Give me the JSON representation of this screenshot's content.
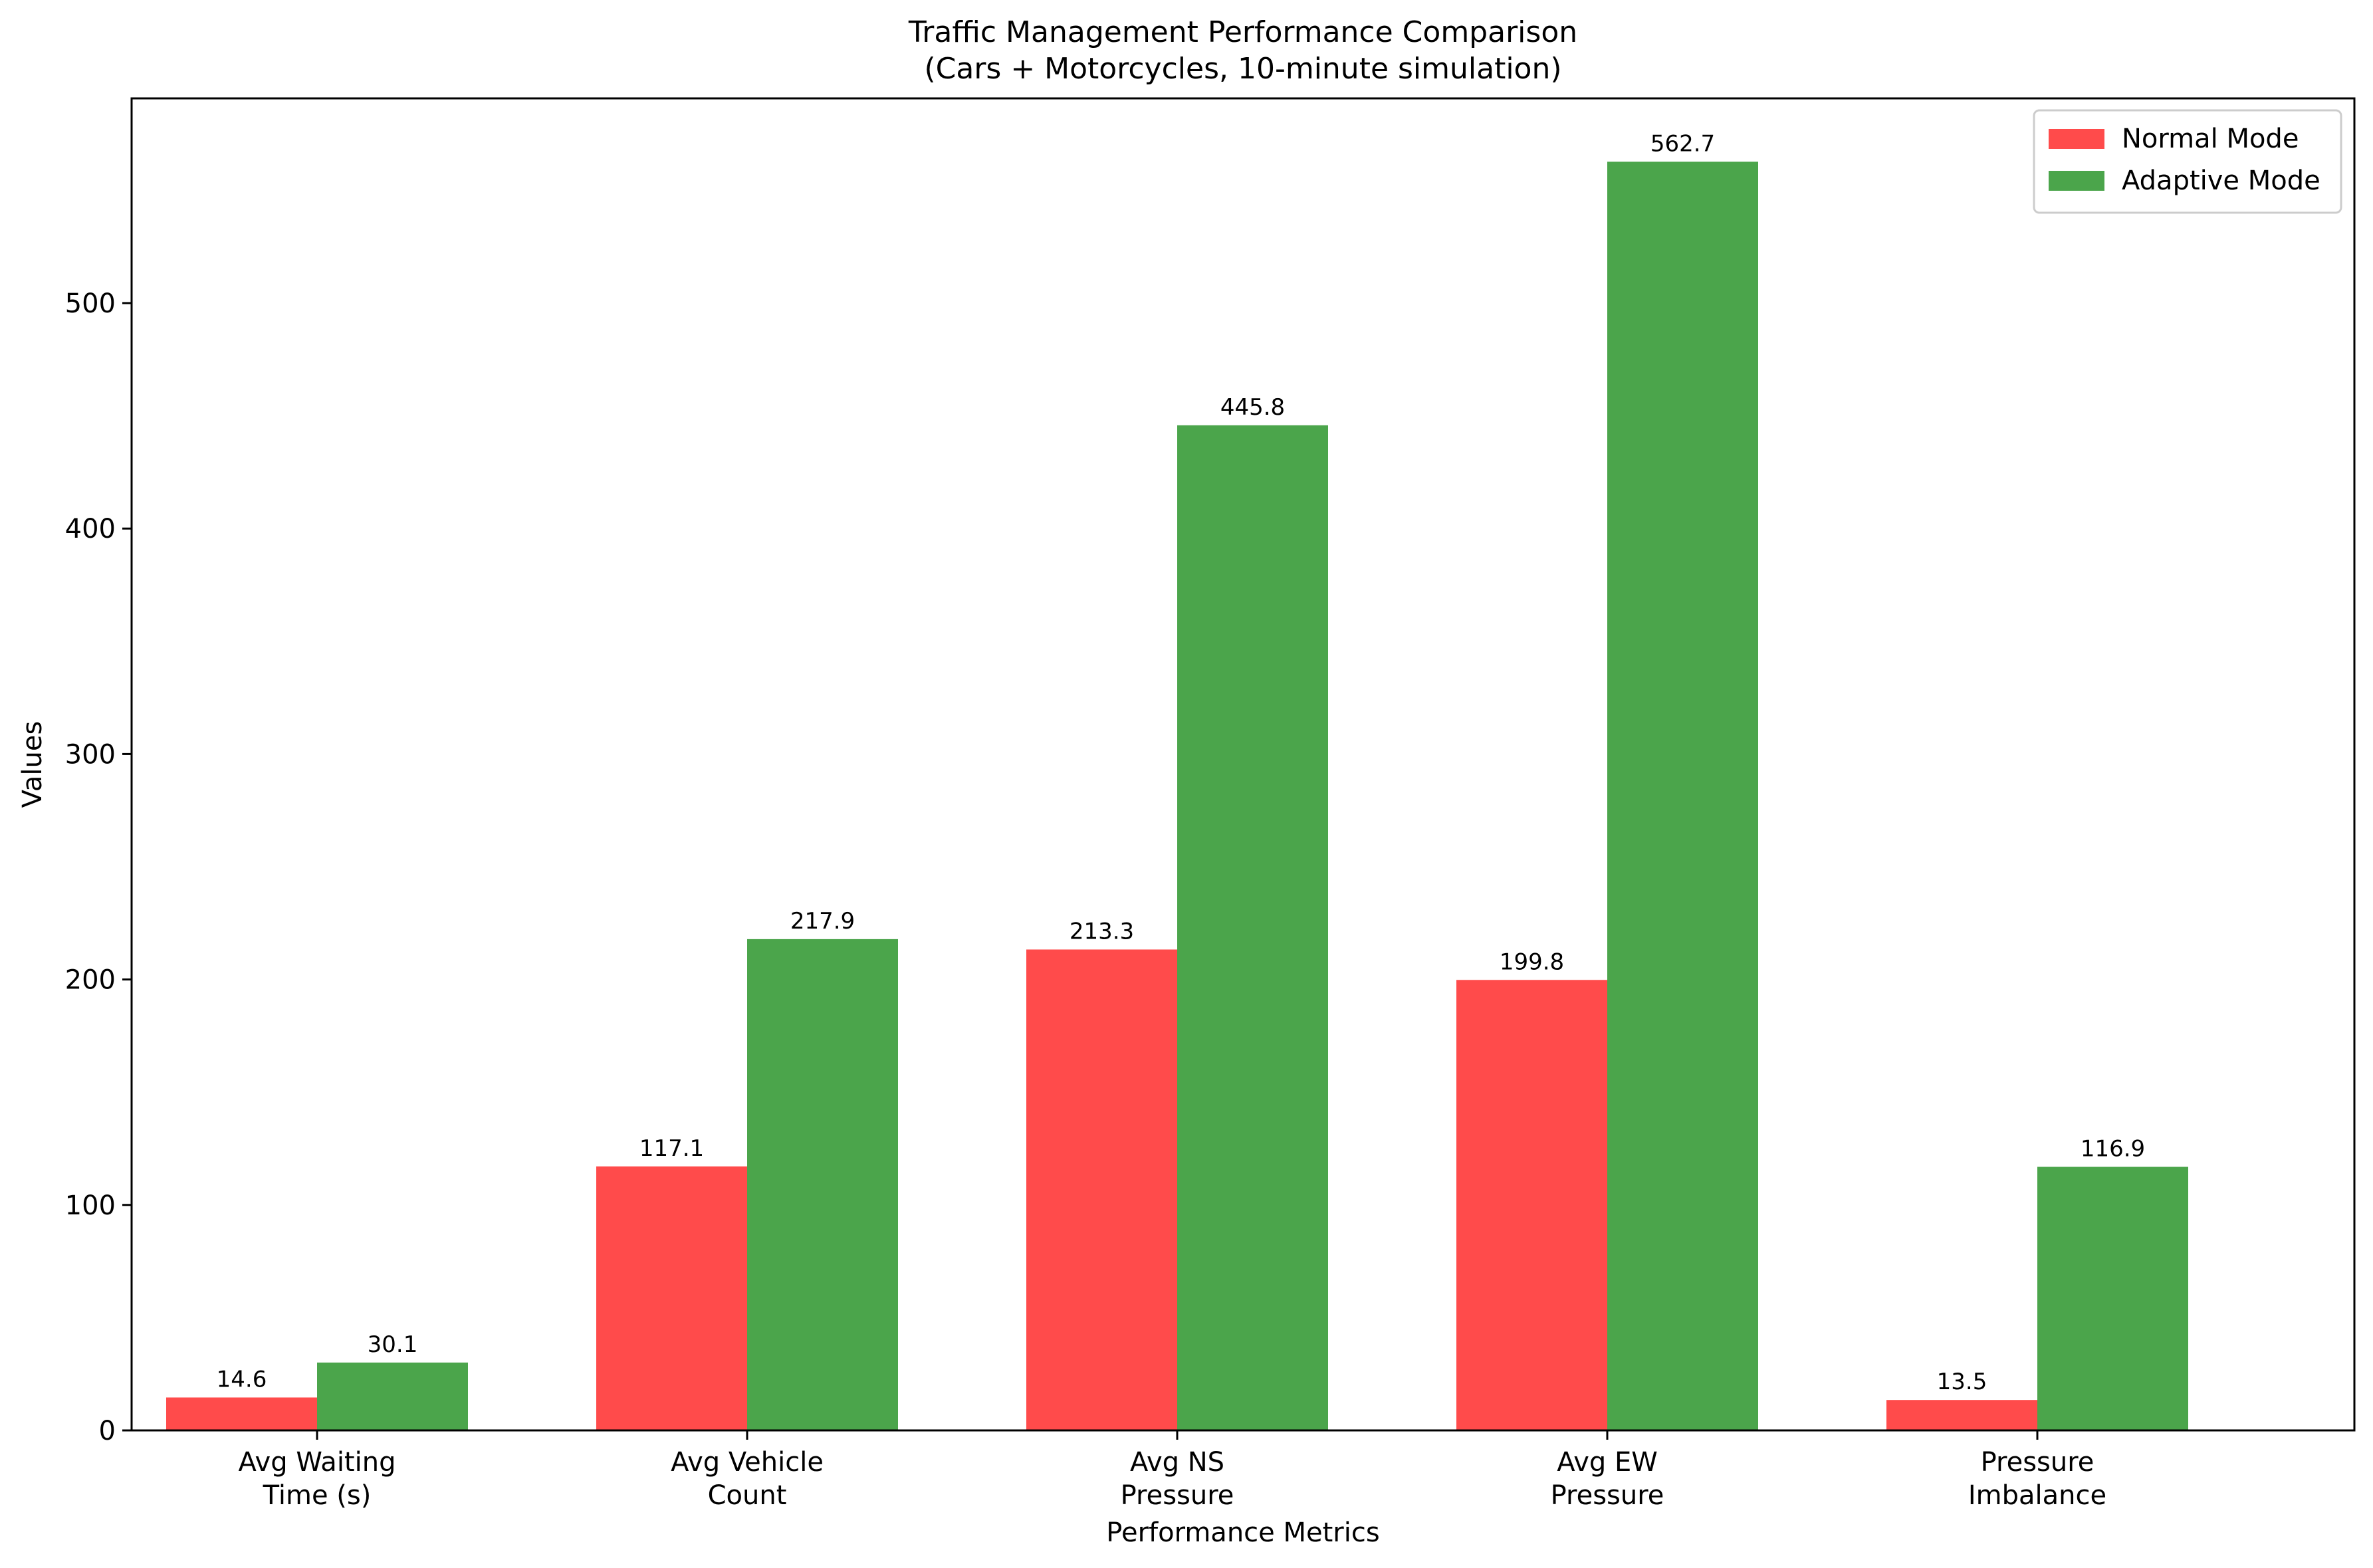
{
  "chart_data": {
    "type": "bar",
    "title": "Traffic Management Performance Comparison",
    "subtitle": "(Cars + Motorcycles, 10-minute simulation)",
    "xlabel": "Performance Metrics",
    "ylabel": "Values",
    "categories": [
      [
        "Avg Waiting",
        "Time (s)"
      ],
      [
        "Avg Vehicle",
        "Count"
      ],
      [
        "Avg NS",
        "Pressure"
      ],
      [
        "Avg EW",
        "Pressure"
      ],
      [
        "Pressure",
        "Imbalance"
      ]
    ],
    "series": [
      {
        "name": "Normal Mode",
        "color": "#ff4b4b",
        "values": [
          14.6,
          117.1,
          213.3,
          199.8,
          13.5
        ]
      },
      {
        "name": "Adaptive Mode",
        "color": "#4ba54b",
        "values": [
          30.1,
          217.9,
          445.8,
          562.7,
          116.9
        ]
      }
    ],
    "ylim": [
      0,
      590.8
    ],
    "yticks": [
      0,
      100,
      200,
      300,
      400,
      500
    ],
    "grid": false,
    "legend": "top-right"
  }
}
